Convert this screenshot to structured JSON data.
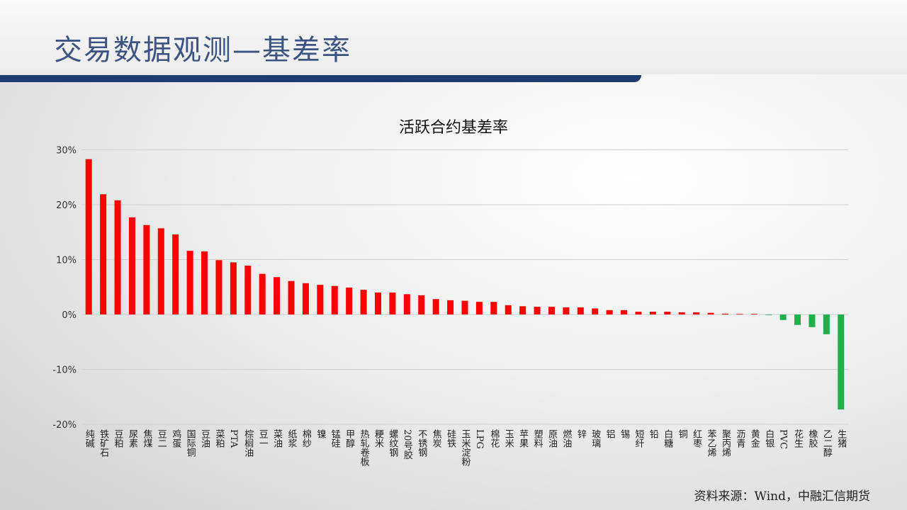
{
  "header": {
    "title": "交易数据观测—基差率"
  },
  "footer": {
    "source": "资料来源：Wind，中融汇信期货"
  },
  "chart_data": {
    "type": "bar",
    "title": "活跃合约基差率",
    "xlabel": "",
    "ylabel": "",
    "ylim": [
      -20,
      30
    ],
    "yticks": [
      "30%",
      "20%",
      "10%",
      "0%",
      "-10%",
      "-20%"
    ],
    "ytick_values": [
      30,
      20,
      10,
      0,
      -10,
      -20
    ],
    "grid": true,
    "colors": {
      "positive": "#ff0000",
      "negative": "#1fb04c"
    },
    "categories": [
      "纯碱",
      "铁矿石",
      "豆粕",
      "尿素",
      "焦煤",
      "豆二",
      "鸡蛋",
      "国际铜",
      "豆油",
      "菜粕",
      "PTA",
      "棕榈油",
      "豆一",
      "菜油",
      "纸浆",
      "棉纱",
      "镍",
      "锰硅",
      "甲醇",
      "热轧卷板",
      "粳米",
      "螺纹钢",
      "20号胶",
      "不锈钢",
      "焦炭",
      "硅铁",
      "玉米淀粉",
      "LPG",
      "棉花",
      "玉米",
      "苹果",
      "塑料",
      "原油",
      "燃油",
      "锌",
      "玻璃",
      "铝",
      "锡",
      "短纤",
      "铅",
      "白糖",
      "铜",
      "红枣",
      "苯乙烯",
      "聚丙烯",
      "沥青",
      "黄金",
      "白银",
      "PVC",
      "花生",
      "橡胶",
      "乙二醇",
      "生猪"
    ],
    "values": [
      28.3,
      21.9,
      20.8,
      17.7,
      16.3,
      15.7,
      14.6,
      11.6,
      11.5,
      9.9,
      9.5,
      8.9,
      7.4,
      6.8,
      6.1,
      5.7,
      5.4,
      5.2,
      4.9,
      4.5,
      4.0,
      4.0,
      3.7,
      3.5,
      2.8,
      2.6,
      2.5,
      2.3,
      2.3,
      1.7,
      1.5,
      1.4,
      1.4,
      1.3,
      1.3,
      1.1,
      0.8,
      0.8,
      0.5,
      0.5,
      0.5,
      0.4,
      0.4,
      0.3,
      0.15,
      0.05,
      0.02,
      -0.1,
      -1.0,
      -1.9,
      -2.3,
      -3.6,
      -17.3
    ]
  }
}
